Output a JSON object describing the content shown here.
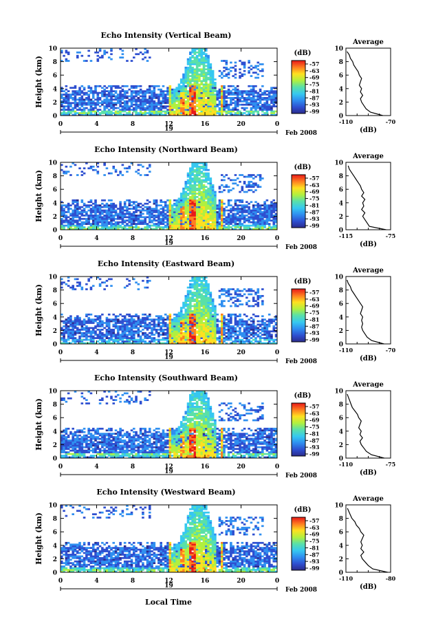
{
  "figure": {
    "xlabel": "Local Time",
    "date_label": "Feb 2008",
    "day_label": "19",
    "colorbar_unit": "(dB)",
    "avg_title": "Average",
    "avg_xlabel": "(dB)",
    "ylabel": "Height (km)"
  },
  "chart_data": [
    {
      "type": "heatmap",
      "title": "Echo Intensity (Vertical Beam)",
      "xlabel": "",
      "ylabel": "Height (km)",
      "x_ticks": [
        "0",
        "4",
        "8",
        "12",
        "16",
        "20",
        "0"
      ],
      "y_ticks": [
        "0",
        "2",
        "4",
        "6",
        "8",
        "10"
      ],
      "xlim": [
        0,
        24
      ],
      "ylim": [
        0,
        10
      ],
      "colorbar_ticks": [
        "-57",
        "-63",
        "-69",
        "-75",
        "-81",
        "-87",
        "-93",
        "-99"
      ],
      "average_profile": {
        "xlim": [
          -110,
          -70
        ],
        "x_tick_labels": [
          "-110",
          "-70"
        ],
        "y_ticks": [
          "0",
          "2",
          "4",
          "6",
          "8",
          "10"
        ],
        "height_km": [
          0,
          0.5,
          1,
          1.5,
          2,
          2.5,
          3,
          3.5,
          4,
          4.5,
          5,
          5.5,
          6,
          6.5,
          7,
          7.5,
          8,
          8.5,
          9,
          9.5
        ],
        "values_db": [
          -77,
          -88,
          -92,
          -94,
          -96,
          -97,
          -95,
          -97,
          -96,
          -98,
          -97,
          -96,
          -98,
          -99,
          -101,
          -103,
          -104,
          -106,
          -107,
          -109
        ]
      }
    },
    {
      "type": "heatmap",
      "title": "Echo Intensity (Northward Beam)",
      "xlabel": "",
      "ylabel": "Height (km)",
      "x_ticks": [
        "0",
        "4",
        "8",
        "12",
        "16",
        "20",
        "0"
      ],
      "y_ticks": [
        "0",
        "2",
        "4",
        "6",
        "8",
        "10"
      ],
      "xlim": [
        0,
        24
      ],
      "ylim": [
        0,
        10
      ],
      "colorbar_ticks": [
        "-57",
        "-63",
        "-69",
        "-75",
        "-81",
        "-87",
        "-93",
        "-99"
      ],
      "average_profile": {
        "xlim": [
          -115,
          -75
        ],
        "x_tick_labels": [
          "-115",
          "-75"
        ],
        "y_ticks": [
          "0",
          "2",
          "4",
          "6",
          "8",
          "10"
        ],
        "height_km": [
          0,
          0.5,
          1,
          1.5,
          2,
          2.5,
          3,
          3.5,
          4,
          4.5,
          5,
          5.5,
          6,
          6.5,
          7,
          7.5,
          8,
          8.5,
          9,
          9.5
        ],
        "values_db": [
          -79,
          -94,
          -96,
          -98,
          -100,
          -98,
          -101,
          -99,
          -100,
          -98,
          -101,
          -99,
          -101,
          -102,
          -104,
          -106,
          -108,
          -110,
          -112,
          -113
        ]
      }
    },
    {
      "type": "heatmap",
      "title": "Echo Intensity (Eastward Beam)",
      "xlabel": "",
      "ylabel": "Height (km)",
      "x_ticks": [
        "0",
        "4",
        "8",
        "12",
        "16",
        "20",
        "0"
      ],
      "y_ticks": [
        "0",
        "2",
        "4",
        "6",
        "8",
        "10"
      ],
      "xlim": [
        0,
        24
      ],
      "ylim": [
        0,
        10
      ],
      "colorbar_ticks": [
        "-57",
        "-63",
        "-69",
        "-75",
        "-81",
        "-87",
        "-93",
        "-99"
      ],
      "average_profile": {
        "xlim": [
          -110,
          -70
        ],
        "x_tick_labels": [
          "-110",
          "-70"
        ],
        "y_ticks": [
          "0",
          "2",
          "4",
          "6",
          "8",
          "10"
        ],
        "height_km": [
          0,
          0.5,
          1,
          1.5,
          2,
          2.5,
          3,
          3.5,
          4,
          4.5,
          5,
          5.5,
          6,
          6.5,
          7,
          7.5,
          8,
          8.5,
          9,
          9.5
        ],
        "values_db": [
          -76,
          -87,
          -91,
          -93,
          -95,
          -96,
          -95,
          -96,
          -95,
          -97,
          -96,
          -95,
          -97,
          -99,
          -101,
          -103,
          -105,
          -106,
          -108,
          -109
        ]
      }
    },
    {
      "type": "heatmap",
      "title": "Echo Intensity (Southward Beam)",
      "xlabel": "",
      "ylabel": "Height (km)",
      "x_ticks": [
        "0",
        "4",
        "8",
        "12",
        "16",
        "20",
        "0"
      ],
      "y_ticks": [
        "0",
        "2",
        "4",
        "6",
        "8",
        "10"
      ],
      "xlim": [
        0,
        24
      ],
      "ylim": [
        0,
        10
      ],
      "colorbar_ticks": [
        "-57",
        "-63",
        "-69",
        "-75",
        "-81",
        "-87",
        "-93",
        "-99"
      ],
      "average_profile": {
        "xlim": [
          -110,
          -75
        ],
        "x_tick_labels": [
          "-110",
          "-75"
        ],
        "y_ticks": [
          "0",
          "2",
          "4",
          "6",
          "8",
          "10"
        ],
        "height_km": [
          0,
          0.5,
          1,
          1.5,
          2,
          2.5,
          3,
          3.5,
          4,
          4.5,
          5,
          5.5,
          6,
          6.5,
          7,
          7.5,
          8,
          8.5,
          9,
          9.5
        ],
        "values_db": [
          -80,
          -90,
          -94,
          -96,
          -98,
          -99,
          -97,
          -99,
          -98,
          -100,
          -99,
          -98,
          -100,
          -101,
          -103,
          -105,
          -106,
          -107,
          -108,
          -109
        ]
      }
    },
    {
      "type": "heatmap",
      "title": "Echo Intensity (Westward Beam)",
      "xlabel": "Local Time",
      "ylabel": "Height (km)",
      "x_ticks": [
        "0",
        "4",
        "8",
        "12",
        "16",
        "20",
        "0"
      ],
      "y_ticks": [
        "0",
        "2",
        "4",
        "6",
        "8",
        "10"
      ],
      "xlim": [
        0,
        24
      ],
      "ylim": [
        0,
        10
      ],
      "colorbar_ticks": [
        "-57",
        "-63",
        "-69",
        "-75",
        "-81",
        "-87",
        "-93",
        "-99"
      ],
      "average_profile": {
        "xlim": [
          -110,
          -80
        ],
        "x_tick_labels": [
          "-110",
          "-80"
        ],
        "y_ticks": [
          "0",
          "2",
          "4",
          "6",
          "8",
          "10"
        ],
        "height_km": [
          0,
          0.5,
          1,
          1.5,
          2,
          2.5,
          3,
          3.5,
          4,
          4.5,
          5,
          5.5,
          6,
          6.5,
          7,
          7.5,
          8,
          8.5,
          9,
          9.5
        ],
        "values_db": [
          -82,
          -92,
          -95,
          -97,
          -99,
          -100,
          -98,
          -100,
          -99,
          -100,
          -99,
          -98,
          -100,
          -101,
          -103,
          -104,
          -106,
          -107,
          -108,
          -109
        ]
      }
    }
  ]
}
